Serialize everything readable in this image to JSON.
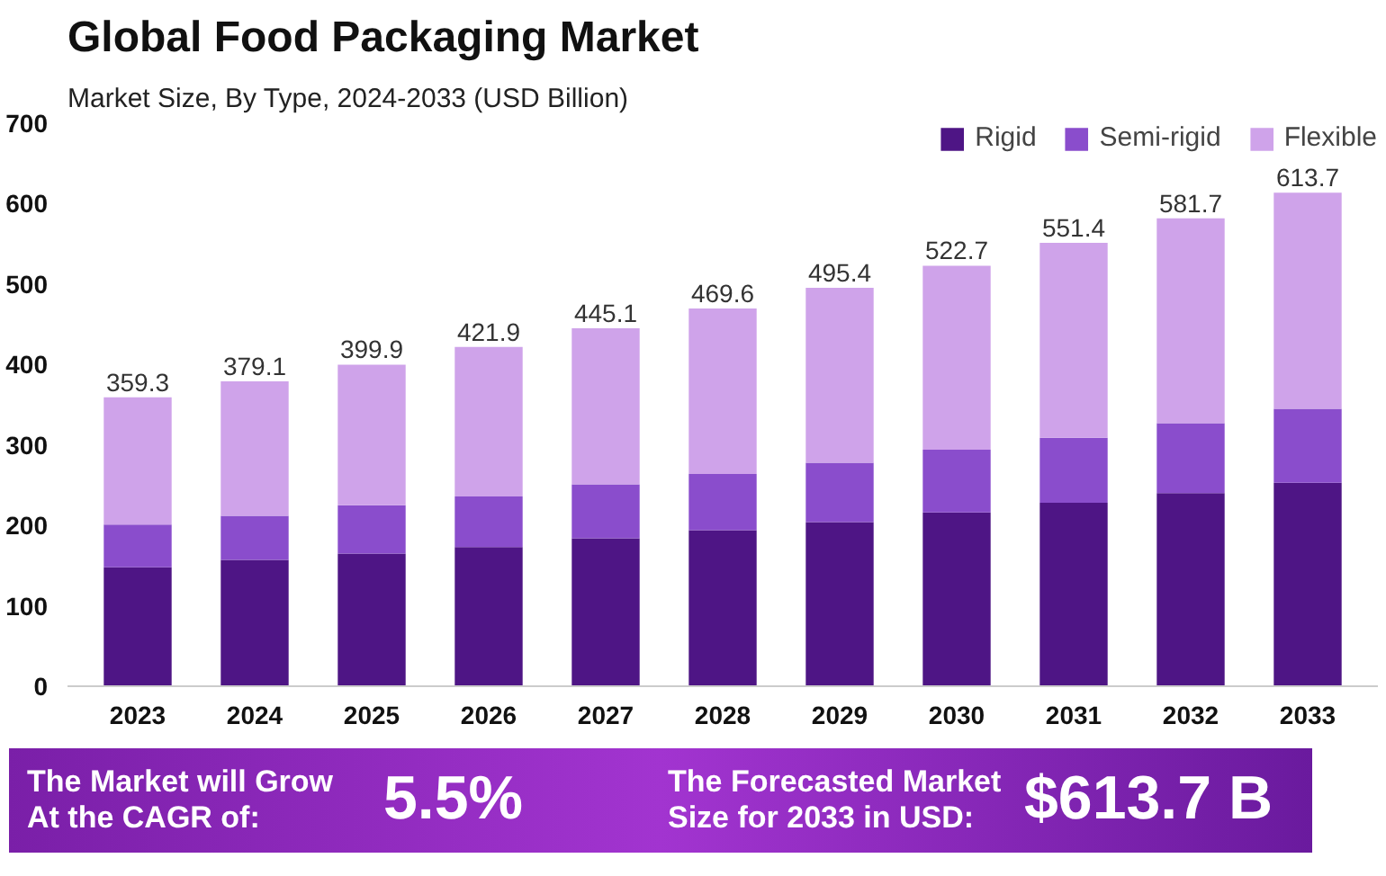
{
  "chart_data": {
    "type": "bar",
    "title": "Global Food Packaging Market",
    "subtitle": "Market Size, By Type, 2024-2033 (USD Billion)",
    "categories": [
      "2023",
      "2024",
      "2025",
      "2026",
      "2027",
      "2028",
      "2029",
      "2030",
      "2031",
      "2032",
      "2033"
    ],
    "stacked": true,
    "series": [
      {
        "name": "Rigid",
        "color": "#4e1585",
        "values": [
          148,
          157,
          165,
          173,
          184,
          194,
          204,
          216,
          228,
          240,
          253
        ]
      },
      {
        "name": "Semi-rigid",
        "color": "#8a4dcc",
        "values": [
          53,
          55,
          60,
          63,
          67,
          70,
          74,
          78,
          81,
          87,
          92
        ]
      },
      {
        "name": "Flexible",
        "color": "#cfa3ea",
        "values": [
          158.3,
          167.1,
          174.9,
          185.9,
          194.1,
          205.6,
          217.4,
          228.7,
          242.4,
          254.7,
          268.7
        ]
      }
    ],
    "totals": [
      "359.3",
      "379.1",
      "399.9",
      "421.9",
      "445.1",
      "469.6",
      "495.4",
      "522.7",
      "551.4",
      "581.7",
      "613.7"
    ],
    "ylim": [
      0,
      700
    ],
    "yticks": [
      0,
      100,
      200,
      300,
      400,
      500,
      600,
      700
    ],
    "grid": false,
    "legend": "top right",
    "annotations": [
      "The Market will Grow At the CAGR of:",
      "5.5%",
      "The Forecasted Market Size for 2033 in USD:",
      "$613.7 B"
    ]
  }
}
